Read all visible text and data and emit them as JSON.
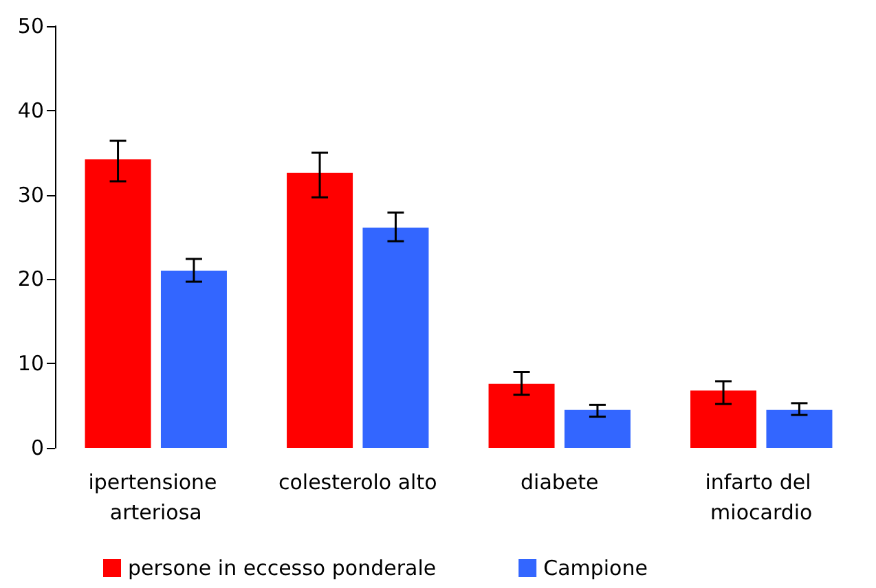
{
  "chart_data": {
    "type": "bar",
    "categories": [
      "ipertensione arteriosa",
      "colesterolo alto",
      "diabete",
      "infarto del miocardio"
    ],
    "series": [
      {
        "name": "persone in eccesso ponderale",
        "color": "#ff0000",
        "values": [
          34.2,
          32.6,
          7.6,
          6.8
        ],
        "errors": [
          [
            31.6,
            36.4
          ],
          [
            29.7,
            35.0
          ],
          [
            6.3,
            9.0
          ],
          [
            5.2,
            7.9
          ]
        ]
      },
      {
        "name": "Campione",
        "color": "#3366ff",
        "values": [
          21.0,
          26.1,
          4.5,
          4.5
        ],
        "errors": [
          [
            19.7,
            22.4
          ],
          [
            24.5,
            27.9
          ],
          [
            3.7,
            5.1
          ],
          [
            3.9,
            5.3
          ]
        ]
      }
    ],
    "ylim": [
      0,
      50
    ],
    "yticks": [
      0,
      10,
      20,
      30,
      40,
      50
    ],
    "grid": false,
    "legend": "bottom"
  }
}
